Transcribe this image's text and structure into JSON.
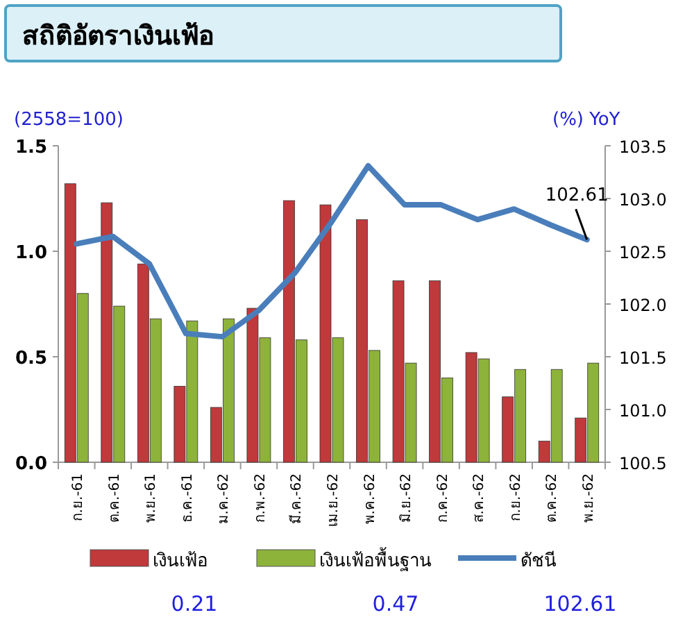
{
  "chart_data": {
    "type": "bar",
    "title": "สถิติอัตราเงินเฟ้อ",
    "ylabel": "(2558=100)",
    "y2label": "(%) YoY",
    "categories": [
      "ก.ย.-61",
      "ต.ค.-61",
      "พ.ย.-61",
      "ธ.ค.-61",
      "ม.ค.-62",
      "ก.พ.-62",
      "มี.ค.-62",
      "เม.ย.-62",
      "พ.ค.-62",
      "มิ.ย.-62",
      "ก.ค.-62",
      "ส.ค.-62",
      "ก.ย.-62",
      "ต.ค.-62",
      "พ.ย.-62"
    ],
    "series": [
      {
        "name": "เงินเฟ้อ",
        "color": "#c0393b",
        "values": [
          1.32,
          1.23,
          0.94,
          0.36,
          0.26,
          0.73,
          1.24,
          1.22,
          1.15,
          0.86,
          0.86,
          0.52,
          0.31,
          0.1,
          0.21
        ]
      },
      {
        "name": "เงินเฟ้อพื้นฐาน",
        "color": "#8db33a",
        "values": [
          0.8,
          0.74,
          0.68,
          0.67,
          0.68,
          0.59,
          0.58,
          0.59,
          0.53,
          0.47,
          0.4,
          0.49,
          0.44,
          0.44,
          0.47
        ]
      },
      {
        "name": "ดัชนี",
        "type": "line",
        "axis": "y2",
        "color": "#4a7ebb",
        "values": [
          102.57,
          102.64,
          102.38,
          101.72,
          101.69,
          101.94,
          102.3,
          102.78,
          103.31,
          102.94,
          102.94,
          102.8,
          102.9,
          102.75,
          102.61
        ]
      }
    ],
    "ylim": [
      0,
      1.5
    ],
    "yticks": [
      {
        "value": 0,
        "label": "0.0"
      },
      0.5,
      {
        "value": 1,
        "label": "1.0"
      },
      1.5
    ],
    "y2lim": [
      100.5,
      103.5
    ],
    "y2ticks": [
      100.5,
      {
        "value": 101,
        "label": "101.0"
      },
      101.5,
      {
        "value": 102,
        "label": "102.0"
      },
      102.5,
      {
        "value": 103,
        "label": "103.0"
      },
      103.5
    ],
    "legend": "bottom",
    "marker": "none",
    "line_style": "solid",
    "annotations": [
      "102.61",
      "0.21",
      "0.47",
      "102.61"
    ]
  }
}
